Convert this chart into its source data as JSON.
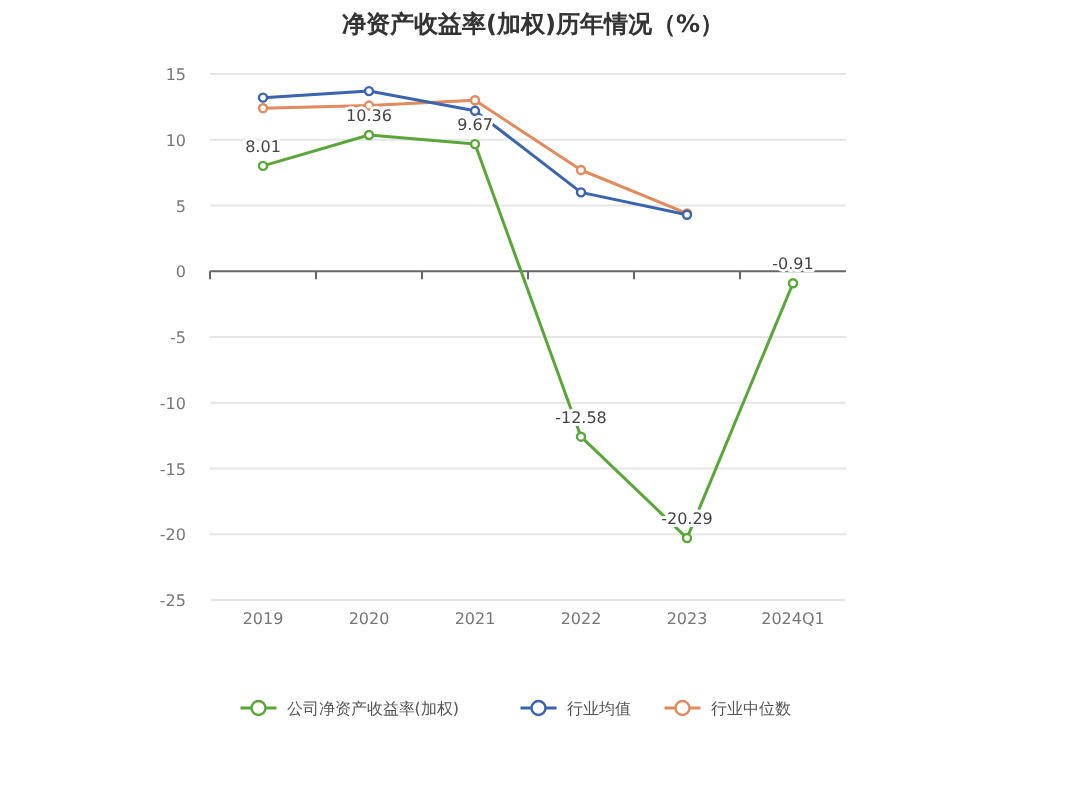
{
  "chart_data": {
    "type": "line",
    "title": "净资产收益率(加权)历年情况（%）",
    "categories": [
      "2019",
      "2020",
      "2021",
      "2022",
      "2023",
      "2024Q1"
    ],
    "series": [
      {
        "name": "公司净资产收益率(加权)",
        "color": "#5aa63a",
        "values": [
          8.01,
          10.36,
          9.67,
          -12.58,
          -20.29,
          -0.91
        ],
        "value_labels": [
          "8.01",
          "10.36",
          "9.67",
          "-12.58",
          "-20.29",
          "-0.91"
        ]
      },
      {
        "name": "行业均值",
        "color": "#3a64ad",
        "values": [
          13.2,
          13.7,
          12.2,
          6.0,
          4.3,
          null
        ]
      },
      {
        "name": "行业中位数",
        "color": "#e08a5e",
        "values": [
          12.4,
          12.6,
          13.0,
          7.7,
          4.4,
          null
        ]
      }
    ],
    "ylim": [
      -25,
      15
    ],
    "yticks": [
      -25,
      -20,
      -15,
      -10,
      -5,
      0,
      5,
      10,
      15
    ],
    "grid": "y",
    "legend": "bottom",
    "marker": "circle",
    "line_style": "solid"
  }
}
